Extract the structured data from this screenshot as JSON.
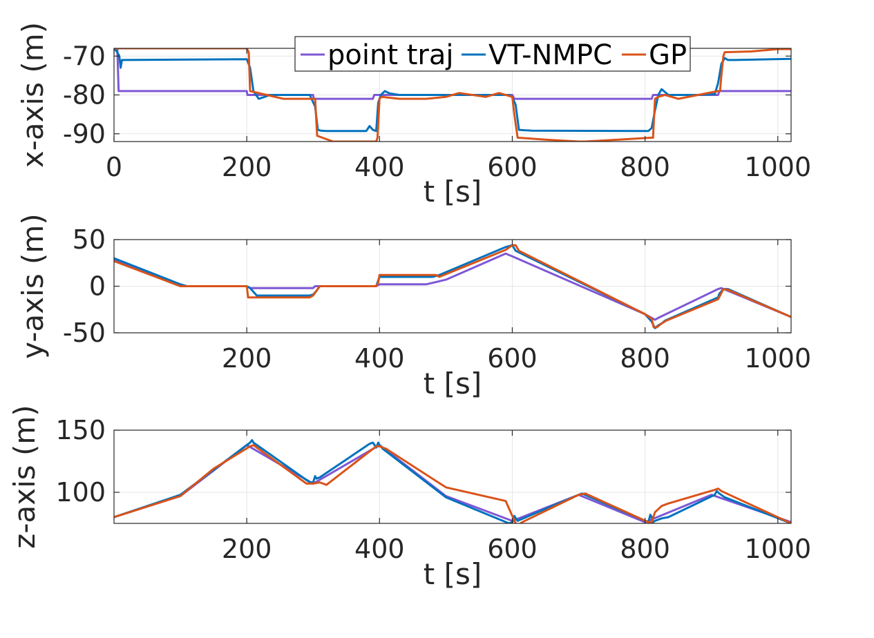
{
  "chart_data": [
    {
      "type": "line",
      "xlabel": "t [s]",
      "ylabel": "x-axis (m)",
      "xlim": [
        0,
        1020
      ],
      "ylim": [
        -92,
        -68
      ],
      "xticks": [
        0,
        200,
        400,
        600,
        800,
        1000
      ],
      "yticks": [
        -70,
        -80,
        -90
      ],
      "ytick_labels": [
        "-70",
        "-80",
        "-90"
      ],
      "grid": true,
      "legend": {
        "placement": "top-center",
        "entries": [
          "point traj",
          "VT-NMPC",
          "GP"
        ]
      },
      "series": [
        {
          "name": "point traj",
          "color": "#7E57D6",
          "x": [
            0,
            5,
            7,
            200,
            201,
            300,
            301,
            390,
            392,
            600,
            603,
            810,
            812,
            910,
            912,
            1020
          ],
          "y": [
            -68,
            -68,
            -79,
            -79,
            -80,
            -80,
            -81,
            -81,
            -80,
            -80,
            -81,
            -81,
            -80,
            -80,
            -79,
            -79
          ]
        },
        {
          "name": "VT-NMPC",
          "color": "#0072BD",
          "x": [
            0,
            5,
            8,
            10,
            12,
            15,
            200,
            205,
            210,
            218,
            225,
            235,
            255,
            295,
            303,
            307,
            312,
            320,
            380,
            385,
            390,
            395,
            398,
            402,
            408,
            415,
            430,
            595,
            600,
            605,
            610,
            630,
            800,
            805,
            810,
            815,
            820,
            825,
            835,
            850,
            880,
            905,
            910,
            915,
            920,
            925,
            935,
            1020
          ],
          "y": [
            -68,
            -69,
            -70,
            -73,
            -71,
            -71,
            -70.8,
            -73,
            -79,
            -81,
            -80.6,
            -80,
            -80,
            -80,
            -83,
            -89,
            -89.2,
            -89.3,
            -89.3,
            -88,
            -89,
            -89.3,
            -82,
            -80,
            -79,
            -79.6,
            -80,
            -80,
            -80.6,
            -82.5,
            -89,
            -89.2,
            -89.3,
            -89.3,
            -88.5,
            -84,
            -80,
            -78.5,
            -80,
            -80,
            -80,
            -79.8,
            -77,
            -72,
            -70.5,
            -71,
            -71,
            -70.7
          ]
        },
        {
          "name": "GP",
          "color": "#D95319",
          "x": [
            0,
            200,
            203,
            205,
            230,
            255,
            295,
            300,
            303,
            306,
            330,
            370,
            395,
            397,
            400,
            403,
            430,
            470,
            500,
            520,
            560,
            580,
            600,
            603,
            608,
            650,
            700,
            710,
            760,
            810,
            812,
            815,
            820,
            830,
            850,
            880,
            910,
            913,
            915,
            918,
            920,
            960,
            1000,
            1020
          ],
          "y": [
            -68,
            -68,
            -69,
            -79,
            -80,
            -81,
            -81,
            -81,
            -81,
            -90.5,
            -92,
            -92,
            -92,
            -91,
            -81,
            -80.5,
            -81,
            -81,
            -80.5,
            -79.5,
            -80.5,
            -79.5,
            -80.5,
            -85,
            -91,
            -91.5,
            -92,
            -92,
            -91.5,
            -91,
            -91,
            -81,
            -80.5,
            -80,
            -81,
            -80,
            -79,
            -79,
            -75,
            -70,
            -69,
            -68.8,
            -68.2,
            -68.2
          ]
        }
      ]
    },
    {
      "type": "line",
      "xlabel": "t [s]",
      "ylabel": "y-axis (m)",
      "xlim": [
        0,
        1020
      ],
      "ylim": [
        -50,
        50
      ],
      "xticks": [
        200,
        400,
        600,
        800,
        1000
      ],
      "yticks": [
        50,
        0,
        -50
      ],
      "ytick_labels": [
        "50",
        "0",
        "-50"
      ],
      "grid": true,
      "series": [
        {
          "name": "point traj",
          "color": "#7E57D6",
          "x": [
            0,
            100,
            200,
            205,
            300,
            303,
            395,
            400,
            470,
            500,
            590,
            600,
            800,
            815,
            820,
            910,
            915,
            1020
          ],
          "y": [
            28,
            0,
            0,
            -2,
            -2,
            0,
            0,
            2,
            2,
            7,
            35,
            32,
            -30,
            -36,
            -34,
            -3,
            -2,
            -33
          ]
        },
        {
          "name": "VT-NMPC",
          "color": "#0072BD",
          "x": [
            0,
            100,
            110,
            200,
            205,
            215,
            295,
            300,
            305,
            310,
            320,
            395,
            400,
            405,
            480,
            490,
            590,
            600,
            605,
            800,
            810,
            815,
            820,
            825,
            830,
            910,
            912,
            918,
            925,
            1020
          ],
          "y": [
            30,
            2,
            0,
            0,
            -2,
            -10,
            -10,
            -9,
            -5,
            0,
            0,
            0,
            10,
            10,
            10,
            12,
            42,
            44,
            38,
            -30,
            -38,
            -45,
            -42,
            -40,
            -37,
            -12,
            -8,
            -3,
            -3,
            -33
          ]
        },
        {
          "name": "GP",
          "color": "#D95319",
          "x": [
            0,
            100,
            110,
            185,
            190,
            200,
            202,
            295,
            300,
            310,
            395,
            398,
            400,
            485,
            490,
            590,
            600,
            605,
            610,
            800,
            810,
            813,
            818,
            825,
            832,
            910,
            913,
            918,
            925,
            1020
          ],
          "y": [
            27,
            0,
            0,
            0,
            0,
            0,
            -12,
            -12,
            -10,
            0,
            0,
            4,
            12,
            12,
            10,
            39,
            44,
            44,
            38,
            -30,
            -35,
            -44,
            -44,
            -40,
            -37,
            -14,
            -10,
            -3,
            -4,
            -33
          ]
        }
      ]
    },
    {
      "type": "line",
      "xlabel": "t [s]",
      "ylabel": "z-axis (m)",
      "xlim": [
        0,
        1020
      ],
      "ylim": [
        75,
        150
      ],
      "xticks": [
        200,
        400,
        600,
        800,
        1000
      ],
      "yticks": [
        150,
        100
      ],
      "ytick_labels": [
        "150",
        "100"
      ],
      "grid": true,
      "series": [
        {
          "name": "point traj",
          "color": "#7E57D6",
          "x": [
            0,
            100,
            200,
            300,
            400,
            500,
            600,
            700,
            800,
            900,
            1020
          ],
          "y": [
            80,
            97,
            138,
            107,
            138,
            97,
            77,
            98,
            76,
            98,
            76
          ]
        },
        {
          "name": "VT-NMPC",
          "color": "#0072BD",
          "x": [
            0,
            100,
            205,
            208,
            210,
            295,
            300,
            303,
            305,
            310,
            385,
            390,
            395,
            398,
            400,
            405,
            500,
            595,
            600,
            603,
            608,
            612,
            700,
            705,
            805,
            808,
            810,
            812,
            815,
            825,
            835,
            905,
            908,
            912,
            920,
            1020
          ],
          "y": [
            80,
            98,
            140,
            142,
            140,
            108,
            108,
            113,
            111,
            112,
            139,
            140,
            136,
            140,
            138,
            135,
            96,
            75,
            76,
            81,
            77,
            78,
            98,
            99,
            76,
            82,
            80,
            76,
            77,
            79,
            80,
            98,
            101,
            99,
            96,
            75
          ]
        },
        {
          "name": "GP",
          "color": "#D95319",
          "x": [
            0,
            100,
            150,
            205,
            210,
            290,
            300,
            310,
            320,
            395,
            400,
            410,
            500,
            590,
            600,
            605,
            610,
            615,
            700,
            710,
            805,
            810,
            815,
            825,
            835,
            905,
            910,
            915,
            1020
          ],
          "y": [
            80,
            97,
            119,
            137,
            138,
            107,
            107,
            108,
            106,
            137,
            137,
            135,
            104,
            93,
            81,
            75,
            74,
            76,
            98,
            99,
            76,
            76,
            84,
            89,
            91,
            102,
            103,
            101,
            75
          ]
        }
      ]
    }
  ]
}
